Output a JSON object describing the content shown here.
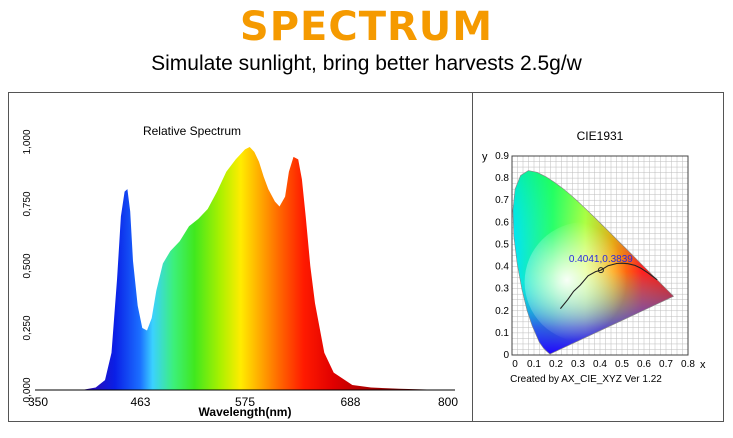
{
  "header": {
    "title": "SPECTRUM",
    "title_color": "#f59a00",
    "subtitle": "Simulate sunlight, bring better harvests 2.5g/w"
  },
  "chart_data": [
    {
      "type": "area",
      "title": "Relative Spectrum",
      "xlabel": "Wavelength(nm)",
      "ylabel": "",
      "xlim": [
        350,
        800
      ],
      "ylim": [
        0,
        1
      ],
      "x_ticks": [
        350,
        463,
        575,
        688,
        800
      ],
      "x_tick_labels": [
        "350",
        "463",
        "575",
        "688",
        "800"
      ],
      "y_ticks": [
        0,
        0.25,
        0.5,
        0.75,
        1.0
      ],
      "y_tick_labels": [
        "0,000",
        "0,250",
        "0,500",
        "0,750",
        "1,000"
      ],
      "fill": "visible-spectrum gradient",
      "series": [
        {
          "x": [
            350,
            400,
            415,
            425,
            432,
            438,
            442,
            446,
            449,
            452,
            455,
            460,
            465,
            470,
            475,
            480,
            487,
            495,
            505,
            515,
            525,
            535,
            545,
            555,
            565,
            575,
            580,
            585,
            590,
            595,
            600,
            607,
            612,
            618,
            622,
            627,
            632,
            636,
            640,
            645,
            650,
            660,
            670,
            690,
            710,
            740,
            770,
            800
          ],
          "y": [
            0.0,
            0.0,
            0.01,
            0.04,
            0.15,
            0.45,
            0.7,
            0.8,
            0.81,
            0.72,
            0.52,
            0.34,
            0.25,
            0.24,
            0.29,
            0.4,
            0.51,
            0.56,
            0.6,
            0.66,
            0.69,
            0.73,
            0.8,
            0.88,
            0.93,
            0.97,
            0.98,
            0.96,
            0.92,
            0.86,
            0.81,
            0.76,
            0.74,
            0.78,
            0.88,
            0.94,
            0.93,
            0.85,
            0.7,
            0.5,
            0.35,
            0.15,
            0.07,
            0.02,
            0.01,
            0.005,
            0.002,
            0.0
          ]
        }
      ]
    },
    {
      "type": "scatter",
      "title": "CIE1931",
      "xlabel": "x",
      "ylabel": "y",
      "xlim": [
        0,
        0.8
      ],
      "ylim": [
        0,
        0.9
      ],
      "x_ticks": [
        0,
        0.1,
        0.2,
        0.3,
        0.4,
        0.5,
        0.6,
        0.7,
        0.8
      ],
      "x_tick_labels": [
        "0",
        "0.1",
        "0.2",
        "0.3",
        "0.4",
        "0.5",
        "0.6",
        "0.7",
        "0.8"
      ],
      "y_ticks": [
        0,
        0.1,
        0.2,
        0.3,
        0.4,
        0.5,
        0.6,
        0.7,
        0.8,
        0.9
      ],
      "y_tick_labels": [
        "0",
        "0.1",
        "0.2",
        "0.3",
        "0.4",
        "0.5",
        "0.6",
        "0.7",
        "0.8",
        "0.9"
      ],
      "grid": true,
      "point": {
        "x": 0.4041,
        "y": 0.3839,
        "label": "0.4041,0.3839"
      },
      "footnote": "Created by AX_CIE_XYZ Ver 1.22",
      "locus": {
        "x": [
          0.1741,
          0.1738,
          0.1733,
          0.1726,
          0.1714,
          0.1689,
          0.1644,
          0.1566,
          0.144,
          0.1241,
          0.0913,
          0.0687,
          0.0454,
          0.0235,
          0.0082,
          0.0039,
          0.0139,
          0.0389,
          0.0743,
          0.1142,
          0.1547,
          0.1929,
          0.2296,
          0.2658,
          0.3016,
          0.3373,
          0.3731,
          0.4087,
          0.4441,
          0.4788,
          0.5125,
          0.5448,
          0.5752,
          0.6029,
          0.627,
          0.6482,
          0.6658,
          0.6801,
          0.6915,
          0.7006,
          0.7079,
          0.714,
          0.719,
          0.7347
        ],
        "y": [
          0.005,
          0.0049,
          0.0048,
          0.0048,
          0.0051,
          0.0069,
          0.0109,
          0.0177,
          0.0297,
          0.0578,
          0.1327,
          0.2007,
          0.295,
          0.4127,
          0.5384,
          0.6548,
          0.7502,
          0.812,
          0.8338,
          0.8262,
          0.8059,
          0.7816,
          0.7543,
          0.7243,
          0.6923,
          0.6589,
          0.6245,
          0.5896,
          0.5547,
          0.5202,
          0.4866,
          0.4544,
          0.4242,
          0.3965,
          0.3725,
          0.3514,
          0.334,
          0.3197,
          0.3083,
          0.2993,
          0.292,
          0.2859,
          0.2809,
          0.2653
        ]
      },
      "planckian": {
        "x": [
          0.22,
          0.253,
          0.28,
          0.31,
          0.346,
          0.38,
          0.4041,
          0.437,
          0.476,
          0.5,
          0.527,
          0.559,
          0.585,
          0.62,
          0.66
        ],
        "y": [
          0.21,
          0.25,
          0.288,
          0.316,
          0.358,
          0.377,
          0.3839,
          0.404,
          0.414,
          0.415,
          0.413,
          0.405,
          0.393,
          0.37,
          0.34
        ]
      }
    }
  ]
}
